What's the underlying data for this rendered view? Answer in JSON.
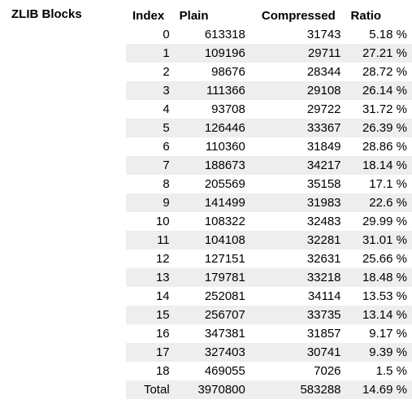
{
  "title": "ZLIB Blocks",
  "columns": [
    "Index",
    "Plain",
    "Compressed",
    "Ratio"
  ],
  "rows": [
    [
      "0",
      "613318",
      "31743",
      "5.18 %"
    ],
    [
      "1",
      "109196",
      "29711",
      "27.21 %"
    ],
    [
      "2",
      "98676",
      "28344",
      "28.72 %"
    ],
    [
      "3",
      "111366",
      "29108",
      "26.14 %"
    ],
    [
      "4",
      "93708",
      "29722",
      "31.72 %"
    ],
    [
      "5",
      "126446",
      "33367",
      "26.39 %"
    ],
    [
      "6",
      "110360",
      "31849",
      "28.86 %"
    ],
    [
      "7",
      "188673",
      "34217",
      "18.14 %"
    ],
    [
      "8",
      "205569",
      "35158",
      "17.1 %"
    ],
    [
      "9",
      "141499",
      "31983",
      "22.6 %"
    ],
    [
      "10",
      "108322",
      "32483",
      "29.99 %"
    ],
    [
      "11",
      "104108",
      "32281",
      "31.01 %"
    ],
    [
      "12",
      "127151",
      "32631",
      "25.66 %"
    ],
    [
      "13",
      "179781",
      "33218",
      "18.48 %"
    ],
    [
      "14",
      "252081",
      "34114",
      "13.53 %"
    ],
    [
      "15",
      "256707",
      "33735",
      "13.14 %"
    ],
    [
      "16",
      "347381",
      "31857",
      "9.17 %"
    ],
    [
      "17",
      "327403",
      "30741",
      "9.39 %"
    ],
    [
      "18",
      "469055",
      "7026",
      "1.5 %"
    ]
  ],
  "total": [
    "Total",
    "3970800",
    "583288",
    "14.69 %"
  ]
}
